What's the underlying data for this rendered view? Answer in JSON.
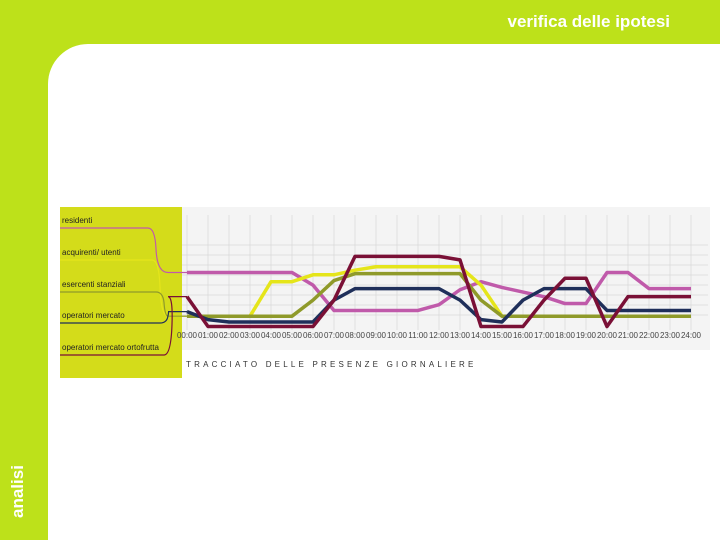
{
  "header": {
    "title": "verifica delle ipotesi",
    "section": "analisi"
  },
  "chart_data": {
    "type": "line",
    "title": "TRACCIATO DELLE PRESENZE GIORNALIERE",
    "x": [
      "00:00",
      "01:00",
      "02:00",
      "03:00",
      "04:00",
      "05:00",
      "06:00",
      "07:00",
      "08:00",
      "09:00",
      "10:00",
      "11:00",
      "12:00",
      "13:00",
      "14:00",
      "15:00",
      "16:00",
      "17:00",
      "18:00",
      "19:00",
      "20:00",
      "21:00",
      "22:00",
      "23:00",
      "24:00"
    ],
    "ylim": [
      0,
      10
    ],
    "series": [
      {
        "name": "residenti",
        "color": "#c05aaa",
        "values": [
          5.0,
          5.0,
          5.0,
          5.0,
          5.0,
          5.0,
          3.9,
          1.7,
          1.7,
          1.7,
          1.7,
          1.7,
          2.2,
          3.5,
          4.2,
          3.7,
          3.3,
          2.9,
          2.3,
          2.3,
          5.0,
          5.0,
          3.6,
          3.6,
          3.6
        ]
      },
      {
        "name": "acquirenti/ utenti",
        "color": "#e5e51a",
        "values": [
          1.2,
          1.2,
          1.2,
          1.2,
          4.2,
          4.2,
          4.8,
          4.8,
          5.2,
          5.5,
          5.5,
          5.5,
          5.5,
          5.5,
          3.9,
          1.2,
          1.2,
          1.2,
          1.2,
          1.2,
          1.2,
          1.2,
          1.2,
          1.2,
          1.2
        ]
      },
      {
        "name": "esercenti stanziali",
        "color": "#8f9a2a",
        "values": [
          1.2,
          1.2,
          1.2,
          1.2,
          1.2,
          1.2,
          2.6,
          4.3,
          4.9,
          4.9,
          4.9,
          4.9,
          4.9,
          4.9,
          2.6,
          1.2,
          1.2,
          1.2,
          1.2,
          1.2,
          1.2,
          1.2,
          1.2,
          1.2,
          1.2
        ]
      },
      {
        "name": "operatori mercato",
        "color": "#1f2f5a",
        "values": [
          1.6,
          0.9,
          0.7,
          0.7,
          0.7,
          0.7,
          0.7,
          2.6,
          3.6,
          3.6,
          3.6,
          3.6,
          3.6,
          2.6,
          0.9,
          0.7,
          2.6,
          3.6,
          3.6,
          3.6,
          1.7,
          1.7,
          1.7,
          1.7,
          1.7
        ]
      },
      {
        "name": "operatori mercato ortofrutta",
        "color": "#7a1036",
        "values": [
          2.9,
          0.3,
          0.3,
          0.3,
          0.3,
          0.3,
          0.3,
          2.6,
          6.4,
          6.4,
          6.4,
          6.4,
          6.4,
          6.1,
          0.3,
          0.3,
          0.3,
          2.6,
          4.5,
          4.5,
          0.3,
          2.9,
          2.9,
          2.9,
          2.9
        ]
      }
    ]
  }
}
